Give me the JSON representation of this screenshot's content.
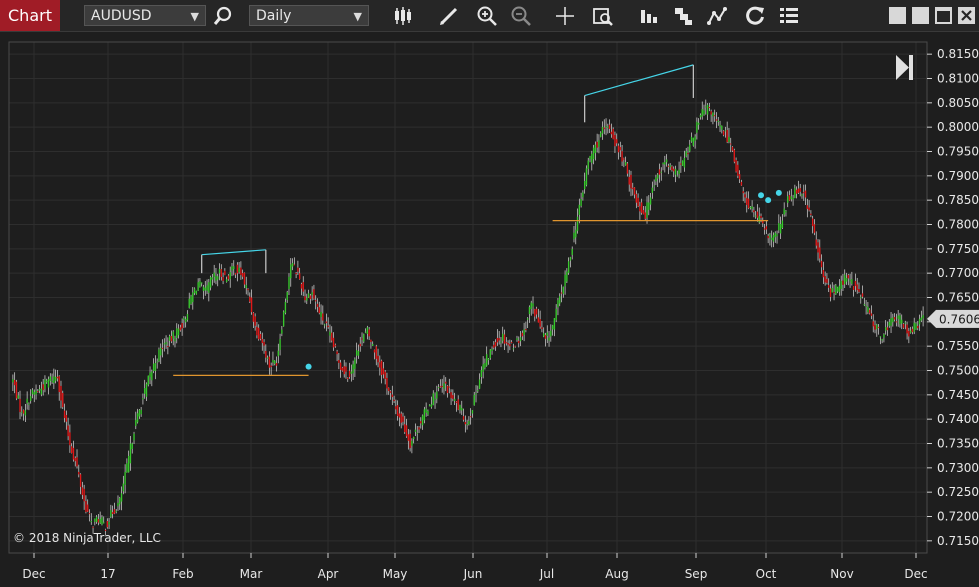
{
  "toolbar": {
    "chart_tab_label": "Chart",
    "instrument": "AUDUSD",
    "interval": "Daily",
    "icons": [
      "search-icon",
      "bar-type-icon",
      "draw-tool-icon",
      "zoom-in-icon",
      "zoom-out-icon",
      "crosshair-icon",
      "data-box-icon",
      "strategies-icon",
      "indicators-icon",
      "chart-style-icon",
      "refresh-icon",
      "properties-icon"
    ]
  },
  "copyright": "© 2018 NinjaTrader, LLC",
  "chart_data": {
    "type": "candlestick",
    "symbol": "AUDUSD",
    "interval": "Daily",
    "x_tick_labels": [
      "Dec",
      "17",
      "Feb",
      "Mar",
      "Apr",
      "May",
      "Jun",
      "Jul",
      "Aug",
      "Sep",
      "Oct",
      "Nov",
      "Dec"
    ],
    "y_tick_labels": [
      "0.8150",
      "0.8100",
      "0.8050",
      "0.8000",
      "0.7950",
      "0.7900",
      "0.7850",
      "0.7800",
      "0.7750",
      "0.7700",
      "0.7650",
      "0.7600",
      "0.7550",
      "0.7500",
      "0.7450",
      "0.7400",
      "0.7350",
      "0.7300",
      "0.7250",
      "0.7200",
      "0.7150"
    ],
    "ylim": [
      0.7125,
      0.8175
    ],
    "last_price": "0.7606",
    "up_color": "#37c82c",
    "down_color": "#e01818",
    "grid": true,
    "close_path": [
      [
        0,
        0.748
      ],
      [
        5,
        0.741
      ],
      [
        10,
        0.745
      ],
      [
        15,
        0.746
      ],
      [
        20,
        0.748
      ],
      [
        25,
        0.749
      ],
      [
        28,
        0.742
      ],
      [
        32,
        0.735
      ],
      [
        36,
        0.73
      ],
      [
        40,
        0.723
      ],
      [
        44,
        0.7185
      ],
      [
        48,
        0.7195
      ],
      [
        52,
        0.718
      ],
      [
        56,
        0.721
      ],
      [
        60,
        0.723
      ],
      [
        64,
        0.73
      ],
      [
        68,
        0.738
      ],
      [
        72,
        0.743
      ],
      [
        76,
        0.748
      ],
      [
        80,
        0.752
      ],
      [
        84,
        0.755
      ],
      [
        88,
        0.756
      ],
      [
        92,
        0.758
      ],
      [
        96,
        0.76
      ],
      [
        100,
        0.765
      ],
      [
        104,
        0.768
      ],
      [
        108,
        0.766
      ],
      [
        112,
        0.769
      ],
      [
        116,
        0.77
      ],
      [
        120,
        0.769
      ],
      [
        124,
        0.771
      ],
      [
        128,
        0.77
      ],
      [
        132,
        0.766
      ],
      [
        136,
        0.759
      ],
      [
        140,
        0.756
      ],
      [
        144,
        0.751
      ],
      [
        148,
        0.752
      ],
      [
        152,
        0.762
      ],
      [
        156,
        0.772
      ],
      [
        160,
        0.77
      ],
      [
        164,
        0.765
      ],
      [
        168,
        0.766
      ],
      [
        172,
        0.762
      ],
      [
        176,
        0.759
      ],
      [
        180,
        0.755
      ],
      [
        184,
        0.751
      ],
      [
        188,
        0.749
      ],
      [
        191,
        0.751
      ],
      [
        195,
        0.756
      ],
      [
        199,
        0.758
      ],
      [
        203,
        0.754
      ],
      [
        207,
        0.75
      ],
      [
        211,
        0.746
      ],
      [
        215,
        0.742
      ],
      [
        219,
        0.739
      ],
      [
        223,
        0.735
      ],
      [
        227,
        0.738
      ],
      [
        231,
        0.741
      ],
      [
        235,
        0.744
      ],
      [
        239,
        0.746
      ],
      [
        243,
        0.747
      ],
      [
        247,
        0.744
      ],
      [
        251,
        0.742
      ],
      [
        255,
        0.739
      ],
      [
        259,
        0.744
      ],
      [
        263,
        0.75
      ],
      [
        267,
        0.753
      ],
      [
        271,
        0.756
      ],
      [
        275,
        0.757
      ],
      [
        279,
        0.755
      ],
      [
        283,
        0.756
      ],
      [
        287,
        0.758
      ],
      [
        291,
        0.764
      ],
      [
        295,
        0.76
      ],
      [
        299,
        0.756
      ],
      [
        303,
        0.759
      ],
      [
        307,
        0.765
      ],
      [
        311,
        0.77
      ],
      [
        315,
        0.778
      ],
      [
        319,
        0.785
      ],
      [
        323,
        0.793
      ],
      [
        327,
        0.796
      ],
      [
        331,
        0.799
      ],
      [
        335,
        0.8
      ],
      [
        339,
        0.796
      ],
      [
        343,
        0.793
      ],
      [
        347,
        0.788
      ],
      [
        351,
        0.784
      ],
      [
        355,
        0.782
      ],
      [
        359,
        0.788
      ],
      [
        363,
        0.791
      ],
      [
        367,
        0.793
      ],
      [
        371,
        0.79
      ],
      [
        375,
        0.792
      ],
      [
        379,
        0.795
      ],
      [
        383,
        0.799
      ],
      [
        387,
        0.803
      ],
      [
        391,
        0.804
      ],
      [
        395,
        0.801
      ],
      [
        399,
        0.799
      ],
      [
        403,
        0.797
      ],
      [
        407,
        0.79
      ],
      [
        411,
        0.785
      ],
      [
        415,
        0.783
      ],
      [
        419,
        0.781
      ],
      [
        423,
        0.778
      ],
      [
        427,
        0.777
      ],
      [
        431,
        0.78
      ],
      [
        435,
        0.785
      ],
      [
        439,
        0.787
      ],
      [
        443,
        0.787
      ],
      [
        447,
        0.783
      ],
      [
        451,
        0.776
      ],
      [
        455,
        0.769
      ],
      [
        459,
        0.766
      ],
      [
        463,
        0.767
      ],
      [
        467,
        0.769
      ],
      [
        471,
        0.768
      ],
      [
        475,
        0.766
      ],
      [
        479,
        0.763
      ],
      [
        483,
        0.76
      ],
      [
        487,
        0.757
      ],
      [
        491,
        0.759
      ],
      [
        495,
        0.761
      ],
      [
        499,
        0.76
      ],
      [
        503,
        0.758
      ],
      [
        507,
        0.759
      ],
      [
        510,
        0.7606
      ]
    ],
    "annotations": [
      {
        "type": "trendline",
        "color": "#45d5e8",
        "from": [
          106,
          0.7738
        ],
        "to": [
          142,
          0.7748
        ]
      },
      {
        "type": "horizontal",
        "color": "#e0952e",
        "from": [
          90,
          0.749
        ],
        "to": [
          166,
          0.749
        ]
      },
      {
        "type": "trendline",
        "color": "#45d5e8",
        "from": [
          321,
          0.8065
        ],
        "to": [
          382,
          0.8128
        ]
      },
      {
        "type": "horizontal",
        "color": "#e0952e",
        "from": [
          303,
          0.7808
        ],
        "to": [
          424,
          0.7808
        ]
      },
      {
        "type": "vertical",
        "color": "#cccccc",
        "from": [
          106,
          0.7738
        ],
        "to": [
          106,
          0.77
        ]
      },
      {
        "type": "vertical",
        "color": "#cccccc",
        "from": [
          142,
          0.7748
        ],
        "to": [
          142,
          0.77
        ]
      },
      {
        "type": "vertical",
        "color": "#cccccc",
        "from": [
          321,
          0.8065
        ],
        "to": [
          321,
          0.801
        ]
      },
      {
        "type": "vertical",
        "color": "#cccccc",
        "from": [
          382,
          0.8128
        ],
        "to": [
          382,
          0.806
        ]
      }
    ],
    "markers": [
      {
        "color": "#45d5e8",
        "x": 166,
        "y": 0.7508
      },
      {
        "color": "#45d5e8",
        "x": 420,
        "y": 0.786
      },
      {
        "color": "#45d5e8",
        "x": 424,
        "y": 0.785
      },
      {
        "color": "#45d5e8",
        "x": 430,
        "y": 0.7865
      }
    ]
  }
}
